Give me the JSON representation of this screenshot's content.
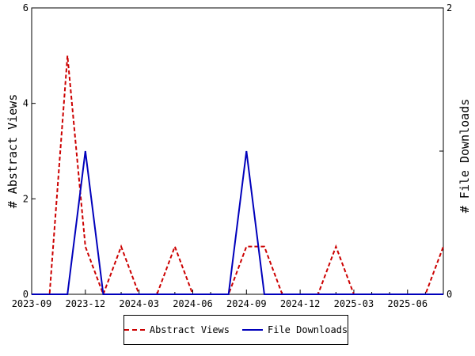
{
  "chart_data": {
    "type": "line",
    "x": [
      "2023-09",
      "2023-10",
      "2023-11",
      "2023-12",
      "2024-01",
      "2024-02",
      "2024-03",
      "2024-04",
      "2024-05",
      "2024-06",
      "2024-07",
      "2024-08",
      "2024-09",
      "2024-10",
      "2024-11",
      "2024-12",
      "2025-01",
      "2025-02",
      "2025-03",
      "2025-04",
      "2025-05",
      "2025-06",
      "2025-07",
      "2025-08"
    ],
    "x_ticks": [
      "2023-09",
      "2023-12",
      "2024-03",
      "2024-06",
      "2024-09",
      "2024-12",
      "2025-03",
      "2025-06"
    ],
    "series": [
      {
        "name": "Abstract Views",
        "axis": "left",
        "color": "#cc0000",
        "style": "dashed",
        "values": [
          0,
          0,
          5,
          1,
          0,
          1,
          0,
          0,
          1,
          0,
          0,
          0,
          1,
          1,
          0,
          0,
          0,
          1,
          0,
          0,
          0,
          0,
          0,
          1
        ]
      },
      {
        "name": "File Downloads",
        "axis": "right",
        "color": "#0000bb",
        "style": "solid",
        "values": [
          0,
          0,
          0,
          1,
          0,
          0,
          0,
          0,
          0,
          0,
          0,
          0,
          1,
          0,
          0,
          0,
          0,
          0,
          0,
          0,
          0,
          0,
          0,
          0
        ]
      }
    ],
    "y_left": {
      "label": "# Abstract Views",
      "ylim": [
        0,
        6
      ],
      "ticks": [
        0,
        2,
        4,
        6
      ]
    },
    "y_right": {
      "label": "# File Downloads",
      "ylim": [
        0,
        2
      ],
      "ticks": [
        0,
        1,
        2
      ]
    },
    "grid": false,
    "legend_position": "bottom-center"
  }
}
